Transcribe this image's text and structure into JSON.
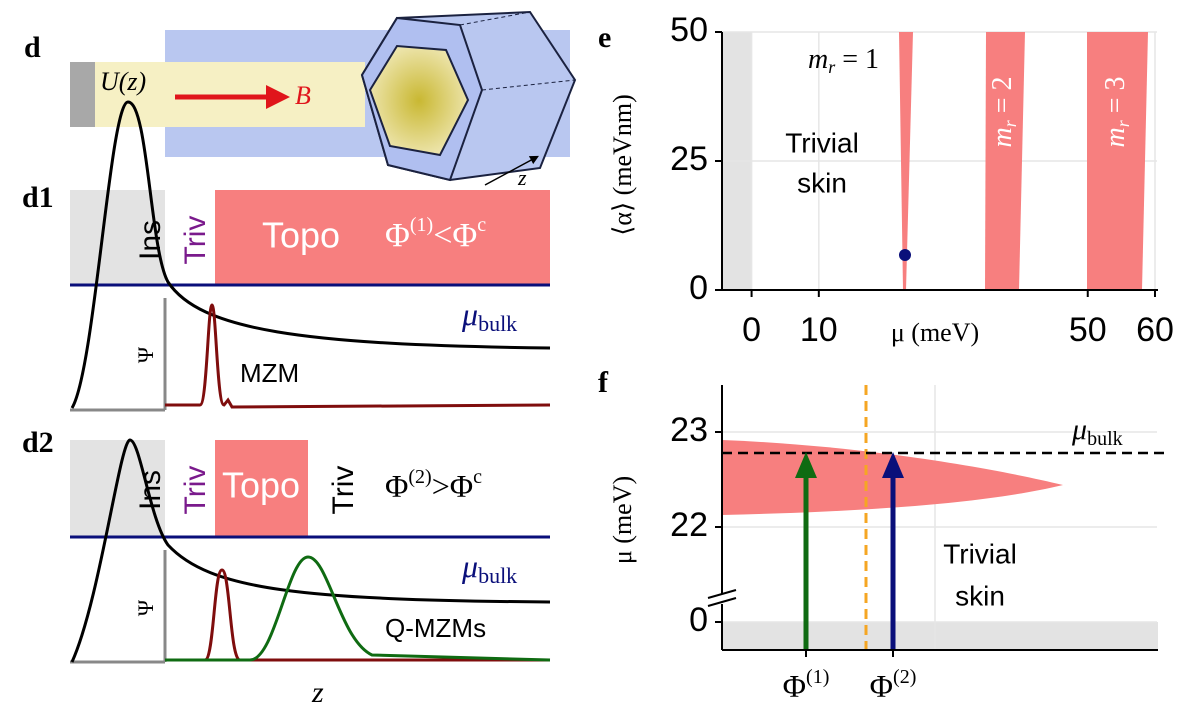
{
  "panels": {
    "d": {
      "label": "d",
      "potential": "U(z)",
      "field": "B",
      "axis": "z"
    },
    "d1": {
      "label": "d1",
      "ins": "Ins",
      "triv": "Triv",
      "topo": "Topo",
      "condition": {
        "base": "Φ",
        "sup": "(1)",
        "rel": "<Φ",
        "sup2": "c"
      },
      "psi": "Ψ",
      "state": "MZM",
      "mu": {
        "base": "μ",
        "sub": "bulk"
      }
    },
    "d2": {
      "label": "d2",
      "ins": "Ins",
      "triv": "Triv",
      "topo": "Topo",
      "triv2": "Triv",
      "condition": {
        "base": "Φ",
        "sup": "(2)",
        "rel": ">Φ",
        "sup2": "c"
      },
      "psi": "Ψ",
      "state": "Q-MZMs",
      "mu": {
        "base": "μ",
        "sub": "bulk"
      }
    },
    "z_label": "z",
    "e": {
      "label": "e",
      "ylabel": "⟨α⟩ (meVnm)",
      "xlabel": "μ (meV)",
      "ylim": [
        0,
        50
      ],
      "yticks": [
        0,
        25,
        50
      ],
      "xlim": [
        -4.4,
        60.3
      ],
      "xticks": [
        0,
        10,
        50,
        60
      ],
      "modes": [
        {
          "base": "m",
          "sub": "r",
          "rest": " = 1"
        },
        {
          "base": "m",
          "sub": "r",
          "rest": " = 2"
        },
        {
          "base": "m",
          "sub": "r",
          "rest": " = 3"
        }
      ],
      "trivial": [
        "Trivial",
        "skin"
      ]
    },
    "f": {
      "label": "f",
      "ylabel": "μ (meV)",
      "yticks": [
        0,
        22,
        23
      ],
      "mu": {
        "base": "μ",
        "sub": "bulk"
      },
      "xticks": [
        {
          "base": "Φ",
          "sup": "(1)"
        },
        {
          "base": "Φ",
          "sup": "(2)"
        }
      ],
      "trivial": [
        "Trivial",
        "skin"
      ]
    }
  }
}
